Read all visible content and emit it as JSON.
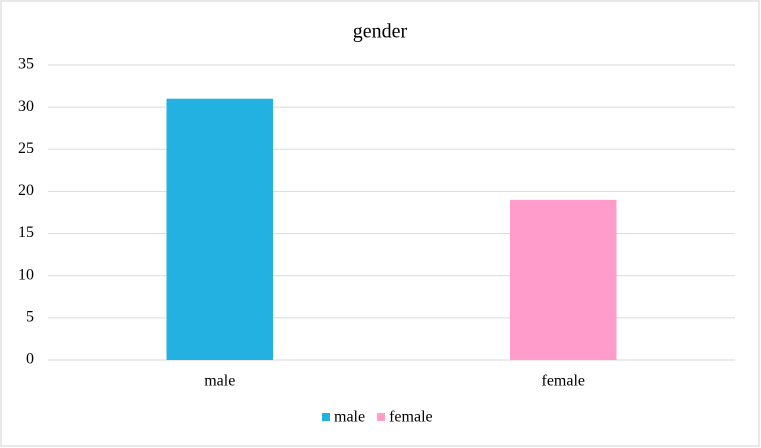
{
  "chart_data": {
    "type": "bar",
    "title": "gender",
    "categories": [
      "male",
      "female"
    ],
    "values": [
      31,
      19
    ],
    "colors": [
      "#22b1e0",
      "#ff9ccb"
    ],
    "ylim": [
      0,
      35
    ],
    "yticks": [
      0,
      5,
      10,
      15,
      20,
      25,
      30,
      35
    ],
    "grid": true,
    "legend": "bottom"
  }
}
